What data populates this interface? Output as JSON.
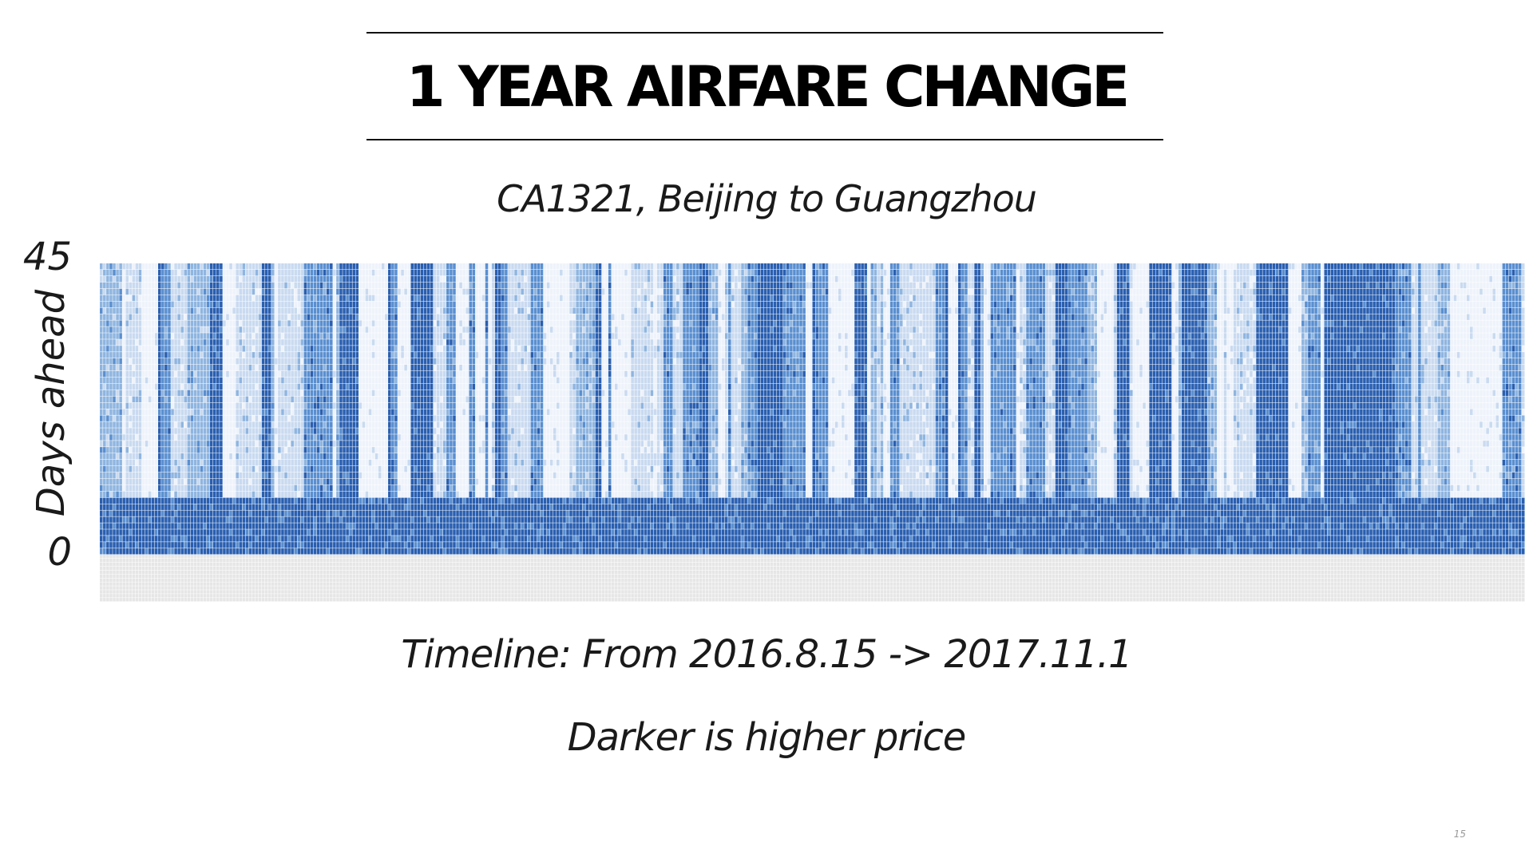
{
  "slide": {
    "title": "1 YEAR AIRFARE CHANGE",
    "subtitle": "CA1321, Beijing to Guangzhou",
    "timeline_text": "Timeline: From 2016.8.15 -> 2017.11.1",
    "note_text": "Darker is higher price",
    "page_number": "15"
  },
  "chart_data": {
    "type": "heatmap",
    "title": "",
    "xlabel": "",
    "ylabel": "Days ahead",
    "y_ticks": [
      "45",
      "0"
    ],
    "ylim": [
      0,
      45
    ],
    "x_range": [
      "2016-08-15",
      "2017-11-01"
    ],
    "value_meaning": "Darker is higher price",
    "colors": {
      "lowest": "#eef3fb",
      "low": "#c9daf0",
      "mid": "#8fb5e0",
      "high": "#5a8fd0",
      "highest": "#2a5fb0",
      "no_data": "#e6e6e6"
    },
    "grid": true
  }
}
